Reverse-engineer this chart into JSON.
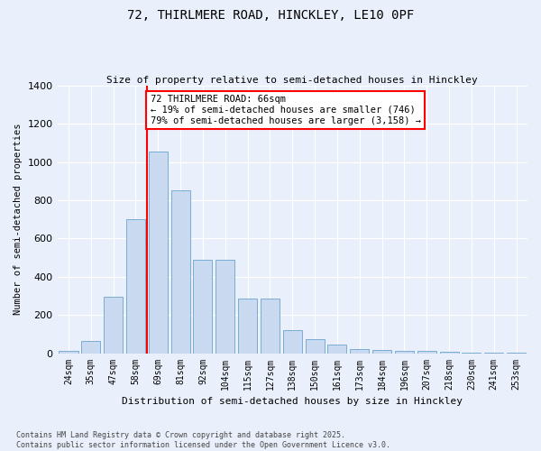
{
  "title_line1": "72, THIRLMERE ROAD, HINCKLEY, LE10 0PF",
  "title_line2": "Size of property relative to semi-detached houses in Hinckley",
  "xlabel": "Distribution of semi-detached houses by size in Hinckley",
  "ylabel": "Number of semi-detached properties",
  "footnote_line1": "Contains HM Land Registry data © Crown copyright and database right 2025.",
  "footnote_line2": "Contains public sector information licensed under the Open Government Licence v3.0.",
  "bar_labels": [
    "24sqm",
    "35sqm",
    "47sqm",
    "58sqm",
    "69sqm",
    "81sqm",
    "92sqm",
    "104sqm",
    "115sqm",
    "127sqm",
    "138sqm",
    "150sqm",
    "161sqm",
    "173sqm",
    "184sqm",
    "196sqm",
    "207sqm",
    "218sqm",
    "230sqm",
    "241sqm",
    "253sqm"
  ],
  "bar_values": [
    10,
    65,
    295,
    700,
    1055,
    850,
    490,
    490,
    285,
    285,
    120,
    75,
    45,
    20,
    18,
    10,
    10,
    5,
    3,
    2,
    2
  ],
  "bar_color": "#c9d9f0",
  "bar_edgecolor": "#7aadd4",
  "vline_color": "red",
  "annotation_title": "72 THIRLMERE ROAD: 66sqm",
  "annotation_line1": "← 19% of semi-detached houses are smaller (746)",
  "annotation_line2": "79% of semi-detached houses are larger (3,158) →",
  "ylim": [
    0,
    1400
  ],
  "yticks": [
    0,
    200,
    400,
    600,
    800,
    1000,
    1200,
    1400
  ],
  "bg_color": "#eaf0fb",
  "plot_bg_color": "#eaf0fb",
  "annotation_box_edgecolor": "red",
  "annotation_box_facecolor": "white",
  "vline_bar_index": 3.5
}
